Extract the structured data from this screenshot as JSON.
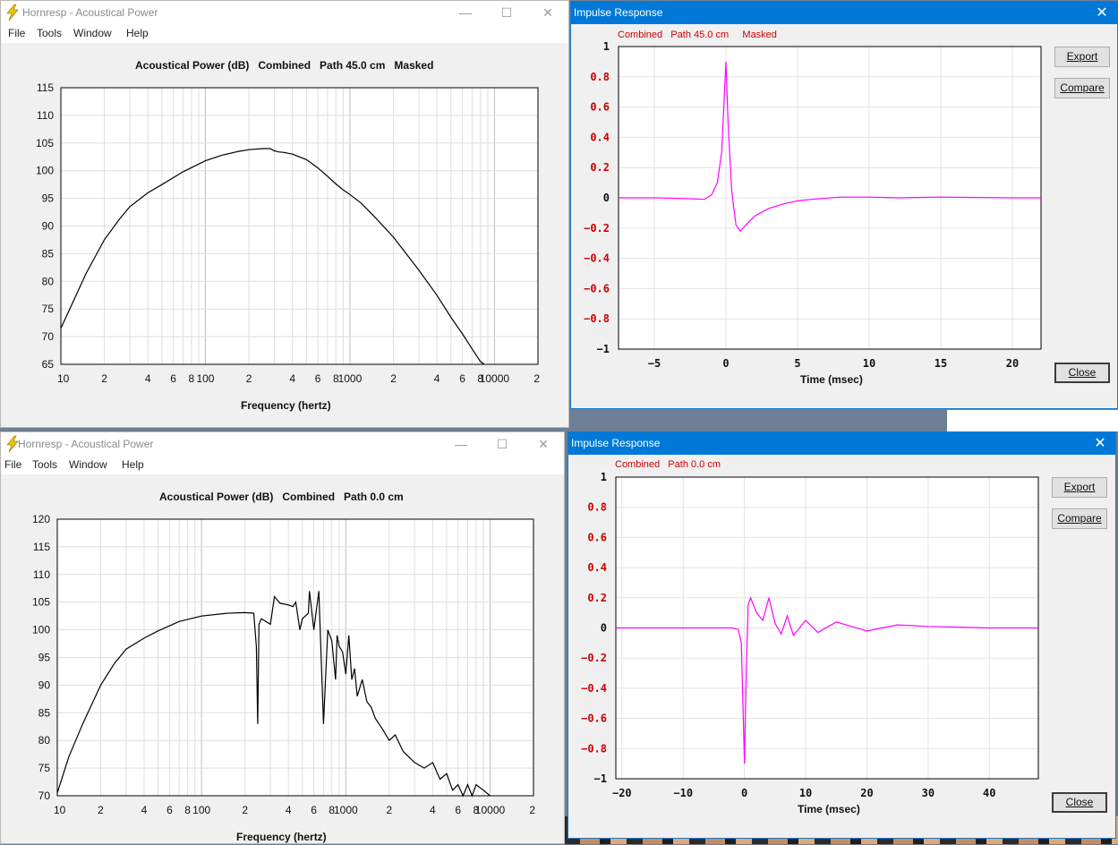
{
  "windows": {
    "ap1": {
      "title": "Hornresp - Acoustical Power",
      "menu": [
        "File",
        "Tools",
        "Window",
        "Help"
      ],
      "chart_title": "Acoustical Power (dB)   Combined   Path 45.0 cm   Masked",
      "xlabel": "Frequency (hertz)"
    },
    "ap2": {
      "title": "Hornresp - Acoustical Power",
      "menu": [
        "File",
        "Tools",
        "Window",
        "Help"
      ],
      "chart_title": "Acoustical Power (dB)   Combined   Path 0.0 cm",
      "xlabel": "Frequency (hertz)"
    },
    "ir1": {
      "title": "Impulse Response",
      "legend": "Combined   Path 45.0 cm     Masked",
      "buttons": {
        "export": "Export",
        "compare": "Compare",
        "close": "Close"
      },
      "xlabel": "Time (msec)"
    },
    "ir2": {
      "title": "Impulse Response",
      "legend": "Combined   Path 0.0 cm",
      "buttons": {
        "export": "Export",
        "compare": "Compare",
        "close": "Close"
      },
      "xlabel": "Time (msec)"
    }
  },
  "colors": {
    "trace": "#000000",
    "impulse": "#ff00ff",
    "ytick_red": "#cc0000",
    "titlebar_active": "#0078d7"
  },
  "chart_data": [
    {
      "type": "line",
      "xscale": "log",
      "x_ticks": [
        "10",
        "2",
        "4",
        "6",
        "8",
        "100",
        "2",
        "4",
        "6",
        "8",
        "1000",
        "2",
        "4",
        "6",
        "8",
        "10000",
        "2"
      ],
      "xlim": [
        10,
        20000
      ],
      "ylim": [
        65,
        115
      ],
      "y_ticks": [
        115,
        110,
        105,
        100,
        95,
        90,
        85,
        80,
        75,
        70,
        65
      ],
      "series": [
        {
          "x": [
            10,
            12,
            15,
            20,
            25,
            30,
            40,
            50,
            70,
            100,
            130,
            170,
            200,
            250,
            280,
            300,
            320,
            350,
            400,
            500,
            600,
            700,
            800,
            900,
            1000,
            1200,
            1500,
            2000,
            3000,
            4000,
            5000,
            6000,
            7000,
            8000,
            8500
          ],
          "y": [
            71.5,
            76,
            81.5,
            87.5,
            91,
            93.5,
            96,
            97.5,
            99.8,
            101.8,
            102.8,
            103.5,
            103.8,
            104,
            104,
            103.6,
            103.4,
            103.3,
            103,
            102,
            100.5,
            99,
            97.6,
            96.5,
            95.7,
            94.1,
            91.5,
            88,
            82,
            77.5,
            73.5,
            70.5,
            67.8,
            65.5,
            65
          ]
        }
      ]
    },
    {
      "type": "line",
      "x": [
        -7.5,
        -5,
        -3,
        -1.5,
        -1,
        -0.6,
        -0.3,
        0,
        0.15,
        0.4,
        0.7,
        1,
        1.5,
        2,
        3,
        4,
        5,
        6,
        8,
        10,
        12,
        15,
        20,
        22
      ],
      "xlim": [
        -7.5,
        22
      ],
      "ylim": [
        -1,
        1
      ],
      "x_ticks": [
        "−5",
        "0",
        "5",
        "10",
        "15",
        "20"
      ],
      "y_ticks": [
        "1",
        "0.8",
        "0.6",
        "0.4",
        "0.2",
        "0",
        "−0.2",
        "−0.4",
        "−0.6",
        "−0.8",
        "−1"
      ],
      "series": [
        {
          "y": [
            0,
            0,
            -0.005,
            -0.01,
            0.02,
            0.1,
            0.3,
            0.9,
            0.5,
            0.05,
            -0.18,
            -0.22,
            -0.17,
            -0.12,
            -0.07,
            -0.04,
            -0.02,
            -0.01,
            0.005,
            0.005,
            0,
            0.005,
            0,
            0
          ]
        }
      ]
    },
    {
      "type": "line",
      "xscale": "log",
      "x_ticks": [
        "10",
        "2",
        "4",
        "6",
        "8",
        "100",
        "2",
        "4",
        "6",
        "8",
        "1000",
        "2",
        "4",
        "6",
        "8",
        "10000",
        "2"
      ],
      "xlim": [
        10,
        20000
      ],
      "ylim": [
        70,
        120
      ],
      "y_ticks": [
        120,
        115,
        110,
        105,
        100,
        95,
        90,
        85,
        80,
        75,
        70
      ],
      "series": [
        {
          "x": [
            10,
            12,
            15,
            20,
            25,
            30,
            40,
            50,
            70,
            100,
            150,
            200,
            230,
            240,
            245,
            250,
            260,
            300,
            320,
            350,
            400,
            430,
            450,
            480,
            500,
            550,
            560,
            600,
            650,
            700,
            750,
            800,
            850,
            870,
            900,
            950,
            1000,
            1050,
            1100,
            1150,
            1200,
            1300,
            1400,
            1500,
            1600,
            1800,
            2000,
            2200,
            2500,
            3000,
            3500,
            4000,
            4500,
            5000,
            5500,
            6000,
            6500,
            7000,
            7500,
            8000,
            9000,
            10000
          ],
          "y": [
            70.5,
            77,
            83,
            90,
            94,
            96.5,
            98.5,
            99.8,
            101.5,
            102.5,
            103,
            103.1,
            103,
            97,
            83,
            101,
            102,
            101,
            106,
            104.8,
            104.5,
            104.2,
            105,
            100,
            102,
            103,
            107,
            100,
            107,
            83,
            100,
            98,
            91,
            99,
            97,
            96,
            92,
            99,
            91,
            93,
            88,
            91,
            87,
            86,
            84,
            82,
            80,
            81,
            78,
            76,
            75,
            76,
            73,
            74,
            71,
            72,
            70,
            72,
            70,
            72,
            71,
            70
          ]
        }
      ]
    },
    {
      "type": "line",
      "x": [
        -21,
        -10,
        -5,
        -2,
        -1,
        -0.5,
        0,
        0.3,
        0.6,
        1,
        2,
        3,
        4,
        5,
        6,
        7,
        8,
        10,
        12,
        15,
        20,
        25,
        30,
        40,
        48
      ],
      "xlim": [
        -21,
        48
      ],
      "ylim": [
        -1,
        1
      ],
      "x_ticks": [
        "−20",
        "−10",
        "0",
        "10",
        "20",
        "30",
        "40"
      ],
      "y_ticks": [
        "1",
        "0.8",
        "0.6",
        "0.4",
        "0.2",
        "0",
        "−0.2",
        "−0.4",
        "−0.6",
        "−0.8",
        "−1"
      ],
      "series": [
        {
          "y": [
            0,
            0,
            0,
            0,
            -0.01,
            -0.1,
            -0.9,
            -0.3,
            0.15,
            0.2,
            0.1,
            0.05,
            0.2,
            0.03,
            -0.04,
            0.08,
            -0.05,
            0.05,
            -0.03,
            0.04,
            -0.02,
            0.02,
            0.01,
            0,
            0
          ]
        }
      ]
    }
  ]
}
